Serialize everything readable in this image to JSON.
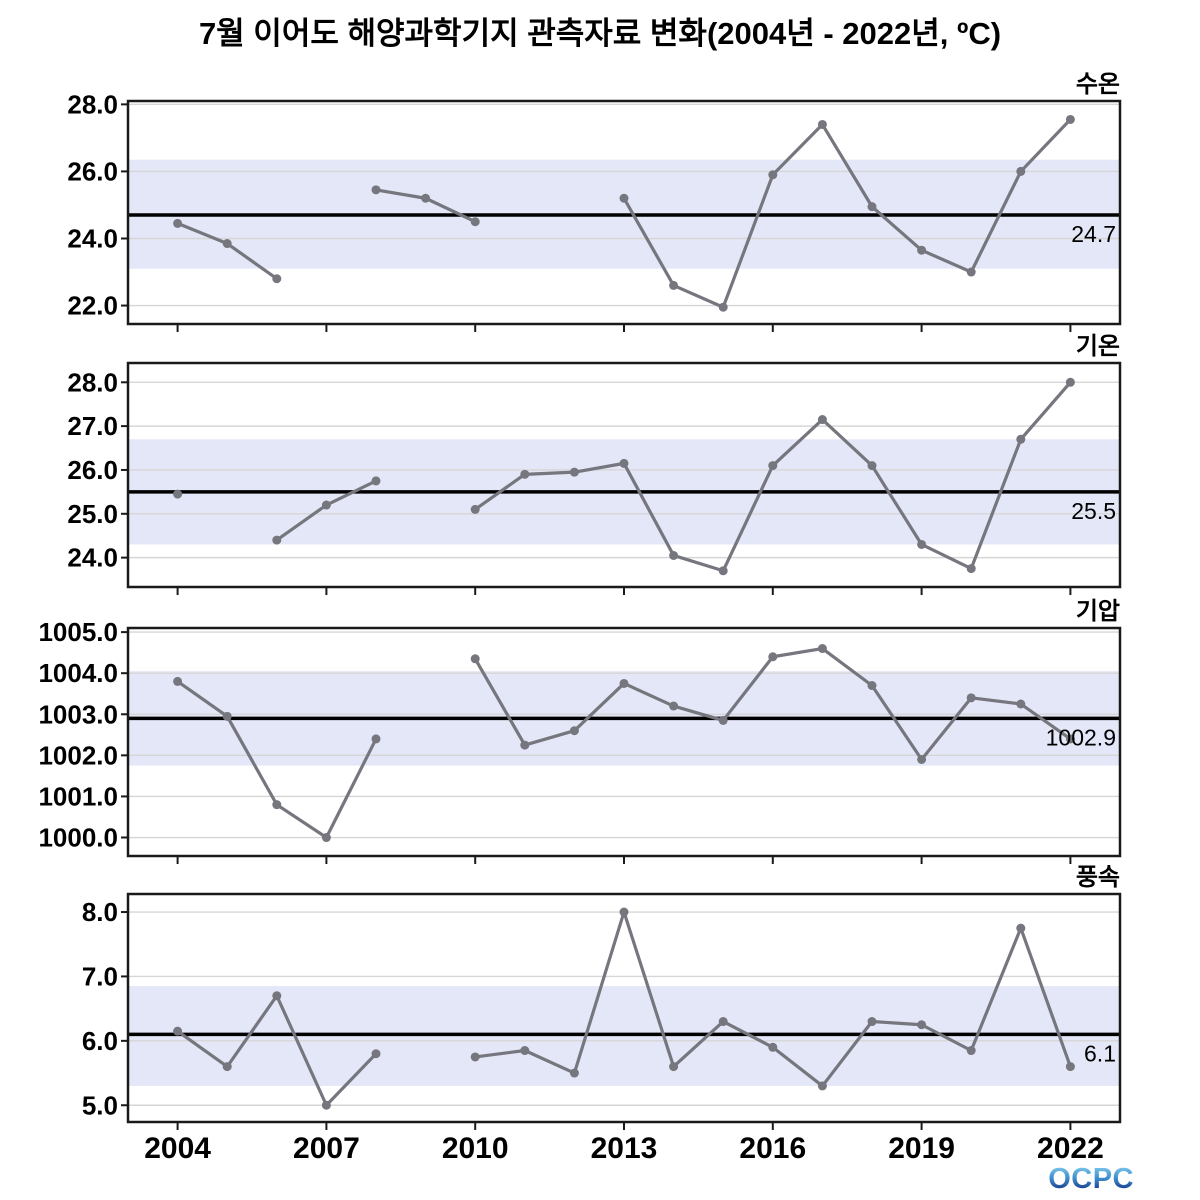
{
  "title": "7월 이어도 해양과학기지 관측자료 변화(2004년 - 2022년, ºC)",
  "logo": {
    "text": "OCPC"
  },
  "colors": {
    "line": "#76767e",
    "marker": "#76767e",
    "band": "#e4e7f7",
    "grid": "#d6d6d6",
    "frame": "#1a1a1a",
    "mean_line": "#000000",
    "text": "#000000",
    "logo_top": "#8ed9f2",
    "logo_bottom": "#122a66"
  },
  "x_tick_years": [
    2004,
    2007,
    2010,
    2013,
    2016,
    2019,
    2022
  ],
  "chart_data": [
    {
      "type": "line",
      "title": "수온",
      "x": [
        2004,
        2005,
        2006,
        2007,
        2008,
        2009,
        2010,
        2011,
        2012,
        2013,
        2014,
        2015,
        2016,
        2017,
        2018,
        2019,
        2020,
        2021,
        2022
      ],
      "values": [
        24.45,
        23.85,
        22.8,
        null,
        25.45,
        25.2,
        24.5,
        null,
        null,
        25.2,
        22.6,
        21.95,
        25.9,
        27.4,
        24.95,
        23.65,
        23.0,
        26.0,
        27.55
      ],
      "mean": 24.7,
      "mean_label": "24.7",
      "band": [
        23.1,
        26.35
      ],
      "yticks": [
        22.0,
        24.0,
        26.0,
        28.0
      ],
      "ylim": [
        21.45,
        28.1
      ],
      "xticks": [
        2004,
        2007,
        2010,
        2013,
        2016,
        2019,
        2022
      ],
      "xlim": [
        2003,
        2023
      ],
      "grid": true,
      "legend": "none"
    },
    {
      "type": "line",
      "title": "기온",
      "x": [
        2004,
        2005,
        2006,
        2007,
        2008,
        2009,
        2010,
        2011,
        2012,
        2013,
        2014,
        2015,
        2016,
        2017,
        2018,
        2019,
        2020,
        2021,
        2022
      ],
      "values": [
        25.45,
        null,
        24.4,
        25.2,
        25.75,
        null,
        25.1,
        25.9,
        25.95,
        26.15,
        24.05,
        23.7,
        26.1,
        27.15,
        26.1,
        24.3,
        23.75,
        26.7,
        28.0
      ],
      "mean": 25.5,
      "mean_label": "25.5",
      "band": [
        24.3,
        26.7
      ],
      "yticks": [
        24.0,
        25.0,
        26.0,
        27.0,
        28.0
      ],
      "ylim": [
        23.33,
        28.44
      ],
      "xticks": [
        2004,
        2007,
        2010,
        2013,
        2016,
        2019,
        2022
      ],
      "xlim": [
        2003,
        2023
      ],
      "grid": true,
      "legend": "none"
    },
    {
      "type": "line",
      "title": "기압",
      "x": [
        2004,
        2005,
        2006,
        2007,
        2008,
        2009,
        2010,
        2011,
        2012,
        2013,
        2014,
        2015,
        2016,
        2017,
        2018,
        2019,
        2020,
        2021,
        2022
      ],
      "values": [
        1003.8,
        1002.95,
        1000.8,
        1000.0,
        1002.4,
        null,
        1004.35,
        1002.25,
        1002.6,
        1003.75,
        1003.2,
        1002.85,
        1004.4,
        1004.6,
        1003.7,
        1001.9,
        1003.4,
        1003.25,
        1002.4
      ],
      "mean": 1002.9,
      "mean_label": "1002.9",
      "band": [
        1001.75,
        1004.05
      ],
      "yticks": [
        1000.0,
        1001.0,
        1002.0,
        1003.0,
        1004.0,
        1005.0
      ],
      "ylim": [
        999.55,
        1005.1
      ],
      "xticks": [
        2004,
        2007,
        2010,
        2013,
        2016,
        2019,
        2022
      ],
      "xlim": [
        2003,
        2023
      ],
      "grid": true,
      "legend": "none"
    },
    {
      "type": "line",
      "title": "풍속",
      "x": [
        2004,
        2005,
        2006,
        2007,
        2008,
        2009,
        2010,
        2011,
        2012,
        2013,
        2014,
        2015,
        2016,
        2017,
        2018,
        2019,
        2020,
        2021,
        2022
      ],
      "values": [
        6.15,
        5.6,
        6.7,
        5.0,
        5.8,
        null,
        5.75,
        5.85,
        5.5,
        8.0,
        5.6,
        6.3,
        5.9,
        5.3,
        6.3,
        6.25,
        5.85,
        7.75,
        5.6
      ],
      "mean": 6.1,
      "mean_label": "6.1",
      "band": [
        5.3,
        6.85
      ],
      "yticks": [
        5.0,
        6.0,
        7.0,
        8.0
      ],
      "ylim": [
        4.74,
        8.28
      ],
      "xticks": [
        2004,
        2007,
        2010,
        2013,
        2016,
        2019,
        2022
      ],
      "xlim": [
        2003,
        2023
      ],
      "grid": true,
      "legend": "none"
    }
  ]
}
